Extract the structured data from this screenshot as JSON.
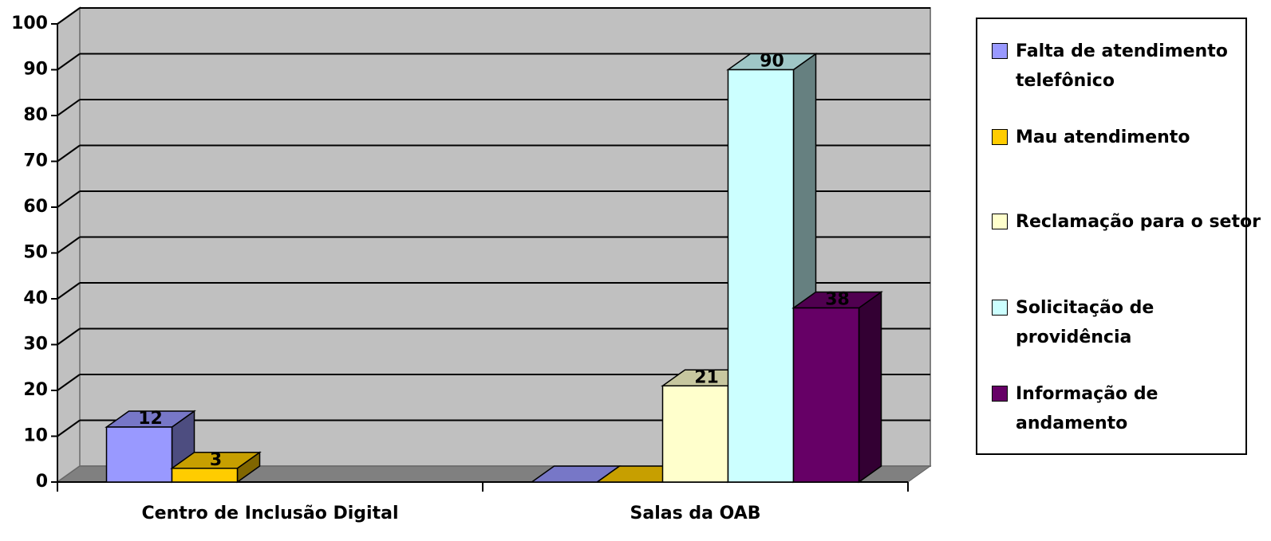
{
  "chart_data": {
    "type": "bar3d",
    "categories": [
      "Centro de Inclusão Digital",
      "Salas da OAB"
    ],
    "series": [
      {
        "name": "Falta de atendimento telefônico",
        "color": "#9999ff",
        "values": [
          12,
          0
        ]
      },
      {
        "name": "Mau atendimento",
        "color": "#ffcc00",
        "values": [
          3,
          0
        ]
      },
      {
        "name": "Reclamação para o setor",
        "color": "#ffffcc",
        "values": [
          null,
          21
        ]
      },
      {
        "name": "Solicitação de providência",
        "color": "#ccffff",
        "values": [
          null,
          90
        ]
      },
      {
        "name": "Informação de andamento",
        "color": "#660066",
        "values": [
          null,
          38
        ]
      }
    ],
    "ylim": [
      0,
      100
    ],
    "yticks": [
      0,
      10,
      20,
      30,
      40,
      50,
      60,
      70,
      80,
      90,
      100
    ],
    "grid": true,
    "legend": "right"
  }
}
